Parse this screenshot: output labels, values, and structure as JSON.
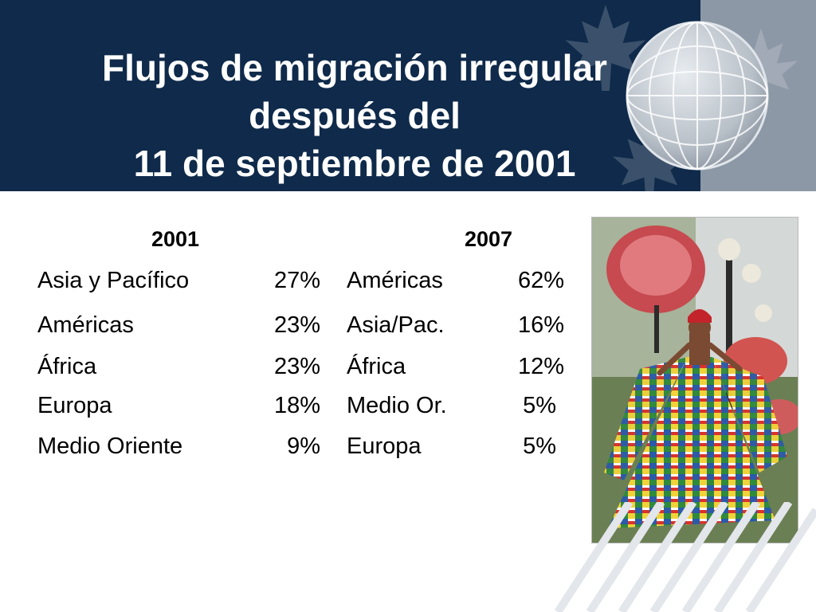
{
  "slide": {
    "title_lines": [
      "Flujos de migración irregular",
      "después del",
      "11 de septiembre de 2001"
    ]
  },
  "table": {
    "col_2001": {
      "header": "2001",
      "rows": [
        {
          "region": "Asia y Pacífico",
          "pct": "27%"
        },
        {
          "region": "Américas",
          "pct": "23%"
        },
        {
          "region": "África",
          "pct": "23%"
        },
        {
          "region": "Europa",
          "pct": "18%"
        },
        {
          "region": "Medio Oriente",
          "pct": "9%"
        }
      ]
    },
    "col_2007": {
      "header": "2007",
      "rows": [
        {
          "region": "Américas",
          "pct": "62%"
        },
        {
          "region": "Asia/Pac.",
          "pct": "16%"
        },
        {
          "region": "África",
          "pct": "12%"
        },
        {
          "region": "Medio Or.",
          "pct": "5%"
        },
        {
          "region": "Europa",
          "pct": "5%"
        }
      ]
    }
  },
  "colors": {
    "header_bg": "#0f2a4a",
    "header_right": "#8c98a6",
    "title_text": "#ffffff"
  },
  "icons": {
    "globe": "globe-icon",
    "photo": "woman-in-flag-dress-photo"
  }
}
